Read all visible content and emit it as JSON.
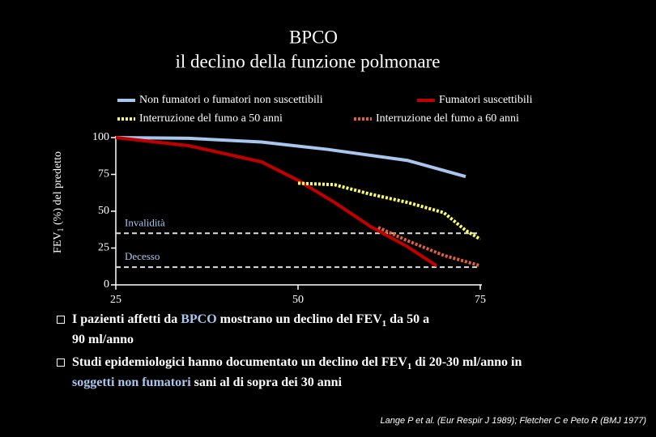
{
  "chart_data": {
    "type": "line",
    "title": [
      "BPCO",
      "il declino della funzione polmonare"
    ],
    "y_label": [
      "FEV",
      "1",
      " (%) del predetto"
    ],
    "xlim": [
      25,
      75
    ],
    "xticks": [
      25,
      50,
      75
    ],
    "ylim": [
      0,
      100
    ],
    "yticks": [
      0,
      25,
      50,
      75,
      100
    ],
    "series": [
      {
        "name": "Non fumatori o fumatori non suscettibili",
        "color": "#a9c6ee",
        "style": "solid",
        "x": [
          25,
          35,
          45,
          54,
          65,
          73
        ],
        "values": [
          100,
          99.5,
          97,
          92,
          84.5,
          73.5
        ]
      },
      {
        "name": "Fumatori suscettibili",
        "color": "#c00000",
        "style": "solid",
        "x": [
          25,
          35,
          45,
          50,
          55,
          60,
          65,
          69
        ],
        "values": [
          100,
          94.5,
          83.5,
          71,
          56,
          39.5,
          26,
          13
        ]
      },
      {
        "name": "Interruzione del fumo a 50 anni",
        "color": "#ffff66",
        "style": "dotted",
        "x": [
          50,
          55,
          60,
          65,
          70,
          73,
          75
        ],
        "values": [
          69,
          68,
          61.5,
          56,
          49,
          37,
          31
        ]
      },
      {
        "name": "Interruzione del fumo a 60 anni",
        "color": "#e0603c",
        "style": "dotted",
        "x": [
          61,
          65,
          70,
          75
        ],
        "values": [
          39,
          30,
          20,
          13
        ]
      }
    ],
    "reference_lines": [
      {
        "label": "Invalidità",
        "value": 35
      },
      {
        "label": "Decesso",
        "value": 12
      }
    ]
  },
  "bullets": [
    [
      {
        "text": "I pazienti affetti da "
      },
      {
        "text": "BPCO",
        "highlight": true
      },
      {
        "text": " mostrano un declino del FEV"
      },
      {
        "text": "1",
        "sub": true
      },
      {
        "text": " da 50 a 90 ml/anno"
      }
    ],
    [
      {
        "text": "Studi epidemiologici hanno documentato un declino del FEV"
      },
      {
        "text": "1",
        "sub": true
      },
      {
        "text": " di 20-30 ml/anno in "
      },
      {
        "text": "soggetti non fumatori",
        "highlight": true
      },
      {
        "text": " sani al di sopra dei 30 anni"
      }
    ]
  ],
  "citation": "Lange P et al. (Eur Respir J 1989); Fletcher C e Peto R (BMJ 1977)"
}
